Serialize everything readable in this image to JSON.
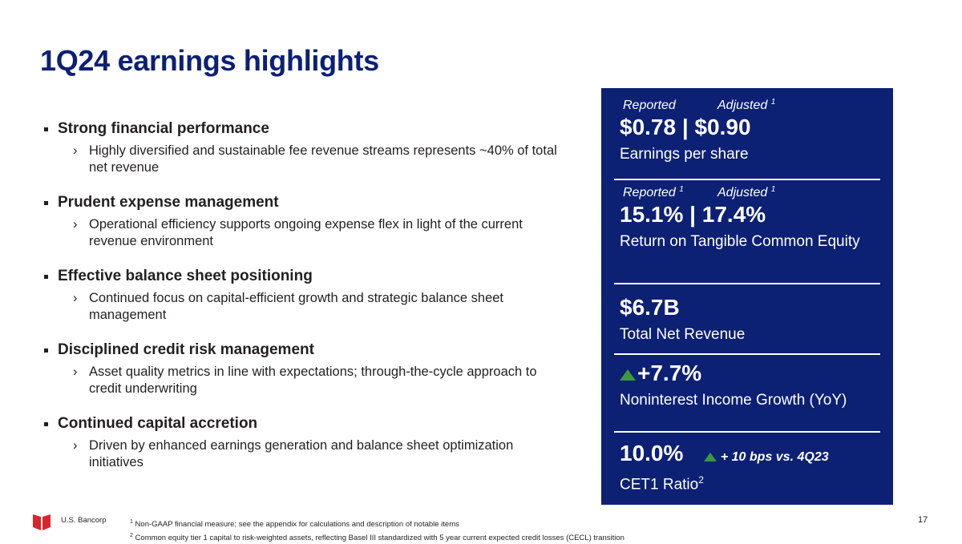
{
  "title": "1Q24 earnings highlights",
  "bullets": [
    {
      "heading": "Strong financial performance",
      "detail": "Highly diversified and sustainable fee revenue streams represents ~40% of total net revenue"
    },
    {
      "heading": "Prudent expense management",
      "detail": "Operational efficiency supports ongoing expense flex in light of the current revenue environment"
    },
    {
      "heading": "Effective balance sheet positioning",
      "detail": "Continued focus on capital-efficient growth and strategic balance sheet management"
    },
    {
      "heading": "Disciplined credit risk management",
      "detail": "Asset quality metrics in line with expectations; through-the-cycle approach to credit underwriting"
    },
    {
      "heading": "Continued capital accretion",
      "detail": "Driven by enhanced earnings generation and balance sheet optimization initiatives"
    }
  ],
  "metrics": {
    "eps": {
      "reported_label": "Reported",
      "adjusted_label": "Adjusted",
      "adjusted_sup": "1",
      "value": "$0.78 | $0.90",
      "desc": "Earnings per share"
    },
    "rotce": {
      "reported_label": "Reported",
      "reported_sup": "1",
      "adjusted_label": "Adjusted",
      "adjusted_sup": "1",
      "value": "15.1% | 17.4%",
      "desc": "Return on Tangible Common Equity"
    },
    "revenue": {
      "value": "$6.7B",
      "desc": "Total Net Revenue"
    },
    "nii_growth": {
      "value": "+7.7%",
      "desc": "Noninterest Income Growth (YoY)"
    },
    "cet1": {
      "value": "10.0%",
      "delta": "+ 10 bps vs. 4Q23",
      "desc": "CET1 Ratio",
      "desc_sup": "2"
    }
  },
  "footer": {
    "brand": "U.S. Bancorp",
    "notes": [
      {
        "num": "1",
        "text": "Non-GAAP financial measure; see the appendix for calculations and description of notable items"
      },
      {
        "num": "2",
        "text": "Common equity tier 1 capital to risk-weighted assets, reflecting Basel III standardized with 5 year current expected credit losses (CECL) transition"
      }
    ],
    "page": "17"
  },
  "colors": {
    "navy": "#0c2074",
    "up_green": "#3a9a3d",
    "logo_red": "#d7262e"
  },
  "icons": {
    "bullet": "square-bullet-icon",
    "sub_bullet": "chevron-right-icon",
    "increase": "up-triangle-icon",
    "logo": "shield-logo-icon"
  }
}
